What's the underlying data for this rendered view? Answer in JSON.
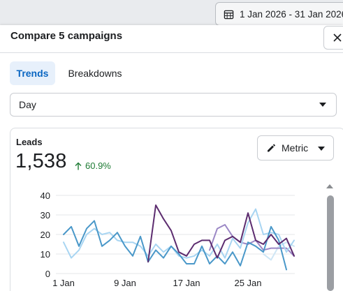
{
  "header": {
    "date_range": "1 Jan 2026 - 31 Jan 2026"
  },
  "panel": {
    "title": "Compare 5 campaigns",
    "tabs": [
      {
        "label": "Trends",
        "active": true
      },
      {
        "label": "Breakdowns",
        "active": false
      }
    ],
    "granularity": {
      "selected": "Day"
    }
  },
  "metric": {
    "label": "Leads",
    "value": "1,538",
    "delta": "60.9%",
    "delta_direction": "up",
    "button_label": "Metric"
  },
  "colors": {
    "accent": "#0a66c2",
    "positive": "#1e7b34",
    "series": [
      "#4a98c9",
      "#a8d5f2",
      "#5c2c6f",
      "#9b87c5",
      "#cfe6f5"
    ]
  },
  "icons": {
    "date": "calendar-icon",
    "close": "close-icon",
    "metric": "pencil-icon",
    "delta": "arrow-up-icon"
  },
  "chart_data": {
    "type": "line",
    "x": [
      "1 Jan",
      "2 Jan",
      "3 Jan",
      "4 Jan",
      "5 Jan",
      "6 Jan",
      "7 Jan",
      "8 Jan",
      "9 Jan",
      "10 Jan",
      "11 Jan",
      "12 Jan",
      "13 Jan",
      "14 Jan",
      "15 Jan",
      "16 Jan",
      "17 Jan",
      "18 Jan",
      "19 Jan",
      "20 Jan",
      "21 Jan",
      "22 Jan",
      "23 Jan",
      "24 Jan",
      "25 Jan",
      "26 Jan",
      "27 Jan",
      "28 Jan",
      "29 Jan",
      "30 Jan",
      "31 Jan"
    ],
    "x_ticks": [
      "1 Jan",
      "9 Jan",
      "17 Jan",
      "25 Jan"
    ],
    "y_ticks": [
      0,
      10,
      20,
      30,
      40
    ],
    "ylim": [
      0,
      40
    ],
    "grid": true,
    "series": [
      {
        "values": [
          20,
          24,
          14,
          23,
          27,
          14,
          17,
          21,
          14,
          9,
          19,
          6,
          12,
          8,
          14,
          10,
          5,
          5,
          14,
          5,
          9,
          5,
          11,
          4,
          16,
          14,
          11,
          24,
          17,
          2,
          null
        ]
      },
      {
        "values": [
          16,
          8,
          12,
          20,
          23,
          20,
          21,
          17,
          16,
          16,
          14,
          9,
          15,
          11,
          14,
          9,
          8,
          9,
          12,
          9,
          15,
          8,
          18,
          13,
          26,
          33,
          20,
          21,
          20,
          11,
          17
        ]
      },
      {
        "values": [
          null,
          null,
          null,
          null,
          null,
          null,
          null,
          null,
          null,
          null,
          null,
          6,
          35,
          28,
          22,
          11,
          9,
          15,
          17,
          17,
          8,
          17,
          19,
          16,
          31,
          17,
          15,
          20,
          15,
          18,
          9
        ]
      },
      {
        "values": [
          null,
          null,
          null,
          null,
          null,
          null,
          null,
          null,
          null,
          null,
          null,
          null,
          null,
          null,
          null,
          null,
          null,
          null,
          null,
          12,
          23,
          25,
          19,
          16,
          15,
          17,
          12,
          13,
          13,
          13,
          9
        ]
      },
      {
        "values": [
          null,
          null,
          null,
          null,
          null,
          null,
          null,
          null,
          null,
          null,
          null,
          null,
          null,
          null,
          null,
          null,
          null,
          null,
          null,
          null,
          null,
          null,
          null,
          null,
          null,
          null,
          10,
          7,
          14,
          16,
          14
        ]
      }
    ]
  }
}
